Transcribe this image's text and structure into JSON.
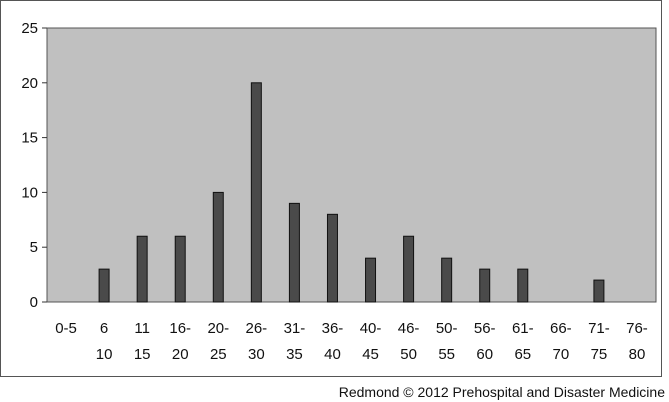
{
  "chart_data": {
    "type": "bar",
    "title": "",
    "xlabel": "",
    "ylabel": "",
    "categories": [
      {
        "top": "0-5",
        "bottom": ""
      },
      {
        "top": "6",
        "bottom": "10"
      },
      {
        "top": "11",
        "bottom": "15"
      },
      {
        "top": "16-",
        "bottom": "20"
      },
      {
        "top": "20-",
        "bottom": "25"
      },
      {
        "top": "26-",
        "bottom": "30"
      },
      {
        "top": "31-",
        "bottom": "35"
      },
      {
        "top": "36-",
        "bottom": "40"
      },
      {
        "top": "40-",
        "bottom": "45"
      },
      {
        "top": "46-",
        "bottom": "50"
      },
      {
        "top": "50-",
        "bottom": "55"
      },
      {
        "top": "56-",
        "bottom": "60"
      },
      {
        "top": "61-",
        "bottom": "65"
      },
      {
        "top": "66-",
        "bottom": "70"
      },
      {
        "top": "71-",
        "bottom": "75"
      },
      {
        "top": "76-",
        "bottom": "80"
      }
    ],
    "values": [
      0,
      3,
      6,
      6,
      10,
      20,
      9,
      8,
      4,
      6,
      4,
      3,
      3,
      0,
      2,
      0
    ],
    "ylim": [
      0,
      25
    ],
    "yticks": [
      0,
      5,
      10,
      15,
      20,
      25
    ],
    "grid": false,
    "legend": "none",
    "colors": {
      "plot_bg": "#c0c0c0",
      "bar_fill": "#4a4a4a",
      "bar_edge": "#111111",
      "frame": "#555555"
    }
  },
  "credit": "Redmond © 2012 Prehospital and Disaster Medicine"
}
